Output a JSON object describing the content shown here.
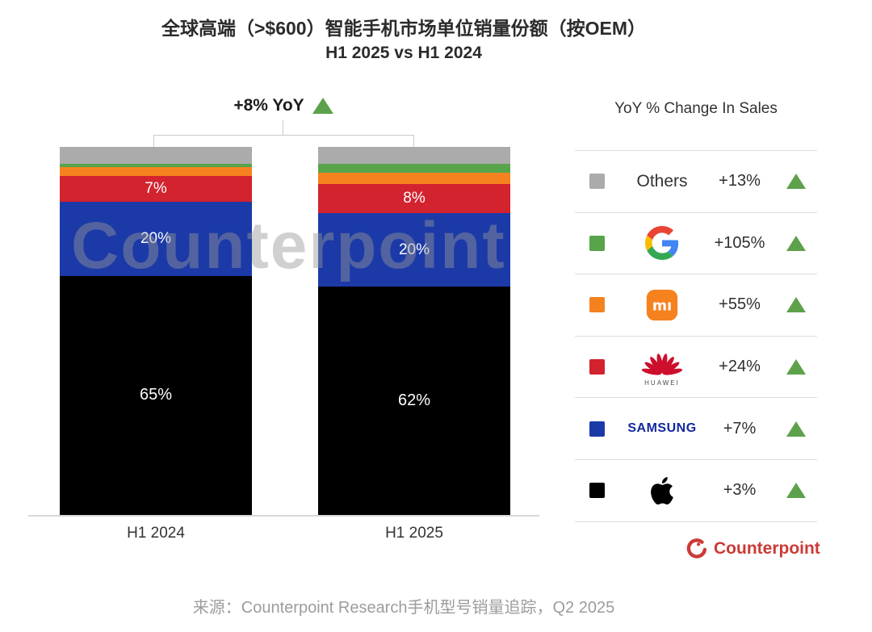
{
  "title": "全球高端（>$600）智能手机市场单位销量份额（按OEM）",
  "subtitle": "H1 2025 vs H1 2024",
  "annotation": {
    "text": "+8% YoY"
  },
  "watermark": "Counterpoint",
  "chart_data": {
    "type": "bar",
    "subtype": "stacked-percent",
    "categories": [
      "H1 2024",
      "H1 2025"
    ],
    "series": [
      {
        "name": "Others",
        "color": "#ABABAB",
        "values": [
          4.5,
          4.5
        ],
        "labels": [
          "",
          ""
        ]
      },
      {
        "name": "Google",
        "color": "#57A44B",
        "values": [
          1.0,
          2.5
        ],
        "labels": [
          "",
          ""
        ]
      },
      {
        "name": "Xiaomi",
        "color": "#F5821F",
        "values": [
          2.5,
          3.0
        ],
        "labels": [
          "",
          ""
        ]
      },
      {
        "name": "Huawei",
        "color": "#D2232F",
        "values": [
          7,
          8
        ],
        "labels": [
          "7%",
          "8%"
        ],
        "label_size": 19
      },
      {
        "name": "Samsung",
        "color": "#1B3AA8",
        "values": [
          20,
          20
        ],
        "labels": [
          "20%",
          "20%"
        ],
        "label_size": 19
      },
      {
        "name": "Apple",
        "color": "#000000",
        "values": [
          65,
          62
        ],
        "labels": [
          "65%",
          "62%"
        ],
        "label_size": 20
      }
    ],
    "total_annotation": "+8% YoY",
    "ylim": [
      0,
      100
    ],
    "grid": false,
    "legend_position": "right"
  },
  "legend": {
    "header": "YoY % Change In Sales",
    "rows": [
      {
        "brand": "Others",
        "change": "+13%",
        "swatch": "#ABABAB"
      },
      {
        "brand": "Google",
        "change": "+105%",
        "swatch": "#57A44B"
      },
      {
        "brand": "Xiaomi",
        "change": "+55%",
        "swatch": "#F5821F"
      },
      {
        "brand": "Huawei",
        "change": "+24%",
        "swatch": "#D2232F",
        "caption": "HUAWEI"
      },
      {
        "brand": "Samsung",
        "change": "+7%",
        "swatch": "#1B3AA8",
        "wordmark": "SAMSUNG"
      },
      {
        "brand": "Apple",
        "change": "+3%",
        "swatch": "#000000"
      }
    ]
  },
  "footer": {
    "source": "来源：Counterpoint Research手机型号销量追踪，Q2 2025",
    "logo_text": "Counterpoint"
  },
  "colors": {
    "up_triangle_green": "#5EA14B",
    "counterpoint_red": "#CC3A36",
    "samsung_wordmark_blue": "#1428A0",
    "bar_label_white": "#FFFFFF"
  }
}
